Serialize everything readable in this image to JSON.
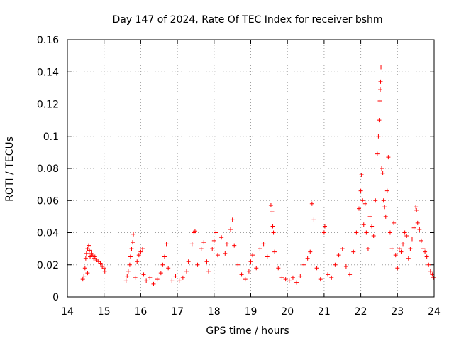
{
  "chart_data": {
    "type": "scatter",
    "title": "Day 147 of 2024, Rate Of TEC Index for receiver bshm",
    "xlabel": "GPS time / hours",
    "ylabel": "ROTI / TECUs",
    "xlim": [
      14,
      24
    ],
    "ylim": [
      0,
      0.16
    ],
    "xticks": [
      14,
      15,
      16,
      17,
      18,
      19,
      20,
      21,
      22,
      23,
      24
    ],
    "yticks": [
      0,
      0.02,
      0.04,
      0.06,
      0.08,
      0.1,
      0.12,
      0.14,
      0.16
    ],
    "xtick_labels": [
      "14",
      "15",
      "16",
      "17",
      "18",
      "19",
      "20",
      "21",
      "22",
      "23",
      "24"
    ],
    "ytick_labels": [
      "0",
      "0.02",
      "0.04",
      "0.06",
      "0.08",
      "0.1",
      "0.12",
      "0.14",
      "0.16"
    ],
    "grid": true,
    "marker": "+",
    "series": [
      {
        "name": "ROTI",
        "color": "#ff0000",
        "points": [
          [
            14.42,
            0.011
          ],
          [
            14.45,
            0.013
          ],
          [
            14.48,
            0.018
          ],
          [
            14.5,
            0.024
          ],
          [
            14.52,
            0.027
          ],
          [
            14.55,
            0.03
          ],
          [
            14.58,
            0.032
          ],
          [
            14.6,
            0.029
          ],
          [
            14.62,
            0.025
          ],
          [
            14.65,
            0.027
          ],
          [
            14.68,
            0.026
          ],
          [
            14.72,
            0.024
          ],
          [
            14.75,
            0.025
          ],
          [
            14.8,
            0.023
          ],
          [
            14.85,
            0.022
          ],
          [
            14.9,
            0.021
          ],
          [
            14.95,
            0.019
          ],
          [
            15.0,
            0.018
          ],
          [
            15.02,
            0.016
          ],
          [
            14.55,
            0.015
          ],
          [
            15.6,
            0.01
          ],
          [
            15.63,
            0.013
          ],
          [
            15.66,
            0.016
          ],
          [
            15.7,
            0.02
          ],
          [
            15.72,
            0.025
          ],
          [
            15.75,
            0.03
          ],
          [
            15.78,
            0.034
          ],
          [
            15.8,
            0.039
          ],
          [
            15.85,
            0.012
          ],
          [
            15.9,
            0.022
          ],
          [
            15.95,
            0.026
          ],
          [
            16.0,
            0.028
          ],
          [
            16.05,
            0.03
          ],
          [
            16.08,
            0.014
          ],
          [
            16.15,
            0.01
          ],
          [
            16.25,
            0.012
          ],
          [
            16.35,
            0.008
          ],
          [
            16.45,
            0.011
          ],
          [
            16.55,
            0.015
          ],
          [
            16.6,
            0.02
          ],
          [
            16.65,
            0.025
          ],
          [
            16.7,
            0.033
          ],
          [
            16.75,
            0.018
          ],
          [
            16.85,
            0.01
          ],
          [
            16.95,
            0.013
          ],
          [
            17.05,
            0.01
          ],
          [
            17.15,
            0.012
          ],
          [
            17.25,
            0.016
          ],
          [
            17.3,
            0.022
          ],
          [
            17.4,
            0.033
          ],
          [
            17.45,
            0.04
          ],
          [
            17.48,
            0.041
          ],
          [
            17.55,
            0.02
          ],
          [
            17.65,
            0.03
          ],
          [
            17.72,
            0.034
          ],
          [
            17.8,
            0.022
          ],
          [
            17.85,
            0.016
          ],
          [
            17.95,
            0.03
          ],
          [
            18.0,
            0.035
          ],
          [
            18.05,
            0.04
          ],
          [
            18.1,
            0.026
          ],
          [
            18.2,
            0.037
          ],
          [
            18.3,
            0.027
          ],
          [
            18.35,
            0.033
          ],
          [
            18.45,
            0.042
          ],
          [
            18.5,
            0.048
          ],
          [
            18.55,
            0.032
          ],
          [
            18.65,
            0.02
          ],
          [
            18.75,
            0.014
          ],
          [
            18.85,
            0.011
          ],
          [
            18.95,
            0.016
          ],
          [
            19.0,
            0.022
          ],
          [
            19.05,
            0.026
          ],
          [
            19.15,
            0.018
          ],
          [
            19.25,
            0.03
          ],
          [
            19.35,
            0.033
          ],
          [
            19.45,
            0.025
          ],
          [
            19.55,
            0.057
          ],
          [
            19.58,
            0.053
          ],
          [
            19.6,
            0.044
          ],
          [
            19.62,
            0.04
          ],
          [
            19.65,
            0.028
          ],
          [
            19.75,
            0.018
          ],
          [
            19.85,
            0.012
          ],
          [
            19.95,
            0.011
          ],
          [
            20.05,
            0.01
          ],
          [
            20.15,
            0.012
          ],
          [
            20.25,
            0.009
          ],
          [
            20.35,
            0.013
          ],
          [
            20.45,
            0.02
          ],
          [
            20.55,
            0.024
          ],
          [
            20.62,
            0.028
          ],
          [
            20.67,
            0.058
          ],
          [
            20.72,
            0.048
          ],
          [
            20.8,
            0.018
          ],
          [
            20.9,
            0.011
          ],
          [
            21.0,
            0.04
          ],
          [
            21.02,
            0.044
          ],
          [
            21.1,
            0.014
          ],
          [
            21.2,
            0.012
          ],
          [
            21.3,
            0.02
          ],
          [
            21.4,
            0.026
          ],
          [
            21.5,
            0.03
          ],
          [
            21.6,
            0.019
          ],
          [
            21.7,
            0.014
          ],
          [
            21.8,
            0.028
          ],
          [
            21.88,
            0.04
          ],
          [
            21.95,
            0.055
          ],
          [
            22.0,
            0.066
          ],
          [
            22.02,
            0.076
          ],
          [
            22.05,
            0.06
          ],
          [
            22.08,
            0.045
          ],
          [
            22.12,
            0.058
          ],
          [
            22.15,
            0.04
          ],
          [
            22.2,
            0.03
          ],
          [
            22.25,
            0.05
          ],
          [
            22.3,
            0.044
          ],
          [
            22.35,
            0.038
          ],
          [
            22.4,
            0.06
          ],
          [
            22.45,
            0.089
          ],
          [
            22.48,
            0.1
          ],
          [
            22.5,
            0.11
          ],
          [
            22.52,
            0.122
          ],
          [
            22.53,
            0.129
          ],
          [
            22.54,
            0.134
          ],
          [
            22.55,
            0.143
          ],
          [
            22.57,
            0.08
          ],
          [
            22.6,
            0.077
          ],
          [
            22.62,
            0.06
          ],
          [
            22.65,
            0.056
          ],
          [
            22.68,
            0.05
          ],
          [
            22.72,
            0.066
          ],
          [
            22.75,
            0.087
          ],
          [
            22.8,
            0.04
          ],
          [
            22.85,
            0.03
          ],
          [
            22.9,
            0.046
          ],
          [
            22.95,
            0.026
          ],
          [
            23.0,
            0.018
          ],
          [
            23.05,
            0.03
          ],
          [
            23.1,
            0.028
          ],
          [
            23.15,
            0.033
          ],
          [
            23.2,
            0.04
          ],
          [
            23.25,
            0.038
          ],
          [
            23.3,
            0.024
          ],
          [
            23.35,
            0.03
          ],
          [
            23.4,
            0.036
          ],
          [
            23.45,
            0.043
          ],
          [
            23.5,
            0.056
          ],
          [
            23.52,
            0.054
          ],
          [
            23.55,
            0.046
          ],
          [
            23.6,
            0.042
          ],
          [
            23.65,
            0.035
          ],
          [
            23.7,
            0.03
          ],
          [
            23.75,
            0.028
          ],
          [
            23.8,
            0.025
          ],
          [
            23.85,
            0.02
          ],
          [
            23.9,
            0.016
          ],
          [
            23.95,
            0.014
          ],
          [
            23.98,
            0.012
          ]
        ]
      }
    ]
  }
}
